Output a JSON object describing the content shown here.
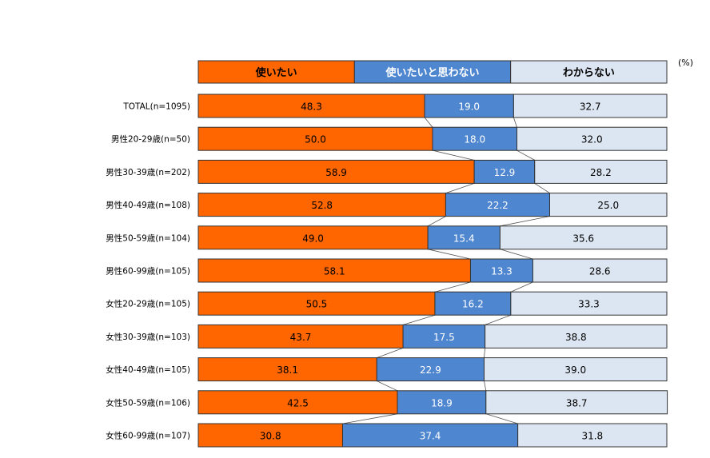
{
  "chart_data": {
    "type": "bar",
    "subtype": "stacked-100-horizontal",
    "unit": "(%)",
    "legend": {
      "placement": "top",
      "entries": [
        "使いたい",
        "使いたいと思わない",
        "わからない"
      ]
    },
    "categories": [
      "TOTAL(n=1095)",
      "男性20-29歳(n=50)",
      "男性30-39歳(n=202)",
      "男性40-49歳(n=108)",
      "男性50-59歳(n=104)",
      "男性60-99歳(n=105)",
      "女性20-29歳(n=105)",
      "女性30-39歳(n=103)",
      "女性40-49歳(n=105)",
      "女性50-59歳(n=106)",
      "女性60-99歳(n=107)"
    ],
    "series": [
      {
        "name": "使いたい",
        "color": "#FF6600",
        "labelColor": "#000000",
        "values": [
          48.3,
          50.0,
          58.9,
          52.8,
          49.0,
          58.1,
          50.5,
          43.7,
          38.1,
          42.5,
          30.8
        ]
      },
      {
        "name": "使いたいと思わない",
        "color": "#4F86D0",
        "labelColor": "#FFFFFF",
        "values": [
          19.0,
          18.0,
          12.9,
          22.2,
          15.4,
          13.3,
          16.2,
          17.5,
          22.9,
          18.9,
          37.4
        ]
      },
      {
        "name": "わからない",
        "color": "#DCE6F2",
        "labelColor": "#000000",
        "values": [
          32.7,
          32.0,
          28.2,
          25.0,
          35.6,
          28.6,
          33.3,
          38.8,
          39.0,
          38.7,
          31.8
        ]
      }
    ],
    "xlim": [
      0,
      100
    ],
    "grid": false,
    "series_lines": true
  }
}
